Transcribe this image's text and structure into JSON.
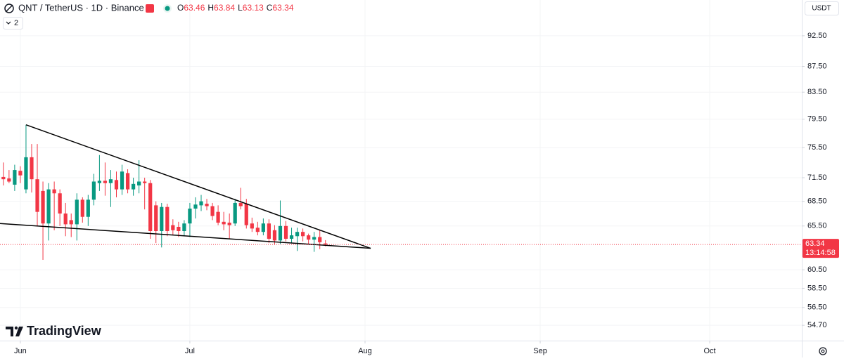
{
  "chart_data": {
    "type": "candlestick",
    "title": "QNT / TetherUS · 1D · Binance",
    "ohlc_labels": [
      "O",
      "H",
      "L",
      "C"
    ],
    "indicators_count": "2",
    "currency": "USDT",
    "countdown": "13:14:58",
    "brand": "TradingView",
    "up_color": "#089981",
    "down_color": "#f23645",
    "log_scale": true,
    "grid": true,
    "categories": [
      null,
      null,
      null,
      null,
      null,
      null,
      null,
      null,
      null,
      null,
      null,
      null,
      null,
      null,
      null,
      null,
      null,
      null,
      null,
      null,
      null,
      null,
      null,
      null,
      null,
      null,
      null,
      null,
      null,
      null,
      null,
      null,
      null,
      null,
      null,
      null,
      null,
      null,
      null,
      null,
      null,
      null,
      null,
      null,
      null,
      null,
      null,
      null,
      null,
      null,
      null,
      null,
      null,
      null,
      null,
      null,
      null,
      null
    ],
    "open": [
      71.6,
      71.4,
      70.6,
      72.4,
      70.0,
      74.2,
      71.3,
      69.8,
      65.8,
      70.0,
      69.5,
      67.0,
      66.2,
      65.7,
      68.7,
      66.6,
      68.7,
      70.8,
      71.1,
      70.8,
      71.2,
      70.0,
      72.1,
      70.0,
      70.5,
      71.0,
      70.8,
      68.0,
      64.9,
      67.8,
      65.6,
      65.4,
      64.9,
      65.8,
      67.6,
      68.0,
      68.2,
      67.9,
      67.2,
      66.0,
      65.9,
      65.8,
      68.3,
      68.2,
      65.8,
      65.3,
      64.8,
      65.8,
      65.0,
      63.8,
      65.5,
      64.0,
      64.3,
      64.8,
      64.4,
      63.9,
      64.2,
      63.46
    ],
    "high": [
      73.5,
      72.5,
      73.2,
      73.0,
      78.7,
      76.0,
      76.0,
      71.0,
      70.8,
      71.0,
      70.0,
      68.3,
      67.0,
      69.5,
      69.0,
      69.3,
      72.0,
      74.5,
      73.5,
      72.5,
      72.3,
      73.2,
      72.6,
      71.5,
      73.8,
      71.5,
      71.2,
      68.5,
      68.3,
      68.2,
      66.3,
      66.0,
      66.2,
      68.3,
      69.0,
      69.3,
      68.8,
      68.3,
      68.0,
      67.2,
      67.0,
      68.8,
      70.2,
      68.8,
      66.5,
      66.0,
      66.4,
      66.3,
      65.6,
      68.6,
      66.1,
      65.3,
      65.3,
      65.2,
      64.6,
      64.8,
      65.0,
      63.84
    ],
    "low": [
      70.5,
      70.8,
      69.8,
      70.8,
      69.5,
      69.6,
      65.5,
      61.6,
      63.8,
      65.0,
      65.5,
      64.3,
      64.2,
      63.8,
      65.9,
      65.5,
      68.0,
      69.8,
      69.2,
      67.8,
      69.0,
      69.3,
      69.5,
      69.2,
      69.5,
      67.5,
      64.0,
      63.5,
      63.0,
      64.3,
      64.4,
      64.2,
      64.3,
      64.2,
      66.4,
      67.3,
      67.4,
      66.2,
      65.6,
      65.0,
      64.0,
      65.5,
      67.5,
      65.2,
      64.8,
      64.4,
      64.4,
      63.5,
      63.3,
      63.4,
      63.7,
      63.5,
      62.6,
      63.7,
      63.4,
      62.5,
      62.8,
      63.13
    ],
    "close": [
      71.3,
      71.0,
      72.5,
      71.8,
      74.2,
      71.3,
      67.2,
      65.8,
      70.0,
      69.5,
      67.0,
      65.7,
      65.7,
      68.7,
      66.6,
      68.7,
      71.0,
      71.1,
      70.8,
      71.3,
      70.0,
      72.3,
      70.0,
      70.7,
      71.0,
      70.8,
      64.9,
      64.9,
      67.8,
      64.9,
      65.0,
      64.9,
      65.8,
      67.6,
      68.1,
      68.5,
      67.9,
      66.7,
      65.9,
      65.7,
      65.6,
      68.3,
      67.9,
      65.6,
      65.2,
      64.8,
      65.8,
      64.0,
      63.8,
      65.5,
      64.0,
      64.4,
      64.8,
      64.3,
      63.9,
      64.2,
      63.6,
      63.34
    ],
    "xlim": [
      -0.6,
      141.3
    ],
    "xticks": [
      {
        "value": 3,
        "label": "Jun"
      },
      {
        "value": 33,
        "label": "Jul"
      },
      {
        "value": 64,
        "label": "Aug"
      },
      {
        "value": 95,
        "label": "Sep"
      },
      {
        "value": 125,
        "label": "Oct"
      }
    ],
    "ylim": [
      53.2,
      98.7
    ],
    "yticks": [
      {
        "value": 54.7,
        "label": "54.70"
      },
      {
        "value": 56.5,
        "label": "56.50"
      },
      {
        "value": 58.5,
        "label": "58.50"
      },
      {
        "value": 60.5,
        "label": "60.50"
      },
      {
        "value": 65.5,
        "label": "65.50"
      },
      {
        "value": 68.5,
        "label": "68.50"
      },
      {
        "value": 71.5,
        "label": "71.50"
      },
      {
        "value": 75.5,
        "label": "75.50"
      },
      {
        "value": 79.5,
        "label": "79.50"
      },
      {
        "value": 83.5,
        "label": "83.50"
      },
      {
        "value": 87.5,
        "label": "87.50"
      },
      {
        "value": 92.5,
        "label": "92.50"
      }
    ],
    "trendlines": [
      {
        "color": "#000000",
        "points": [
          [
            4,
            78.7
          ],
          [
            65,
            62.9
          ]
        ]
      },
      {
        "color": "#000000",
        "points": [
          [
            -0.6,
            65.8
          ],
          [
            65,
            62.9
          ]
        ]
      }
    ]
  }
}
